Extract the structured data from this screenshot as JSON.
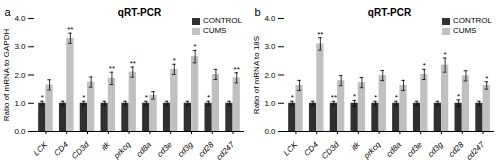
{
  "chart_data": [
    {
      "type": "bar",
      "panel_label": "a",
      "title": "qRT-PCR",
      "ylabel": "Ratio of mRNA to GAPDH",
      "categories": [
        "LCK",
        "CD4",
        "CD3d",
        "itk",
        "prkcq",
        "cd8a",
        "cd3e",
        "cd3g",
        "cd28",
        "cd247"
      ],
      "series": [
        {
          "name": "CONTROL",
          "color": "#303030",
          "values": [
            1.0,
            1.0,
            1.0,
            1.0,
            1.0,
            1.0,
            1.0,
            1.0,
            1.0,
            1.0
          ],
          "errors": [
            0.07,
            0.07,
            0.07,
            0.07,
            0.07,
            0.07,
            0.07,
            0.07,
            0.07,
            0.07
          ],
          "significance": [
            "*",
            null,
            "*",
            null,
            null,
            "*",
            null,
            null,
            "*",
            null
          ]
        },
        {
          "name": "CUMS",
          "color": "#c0c0c0",
          "values": [
            1.65,
            3.3,
            1.75,
            1.88,
            2.1,
            1.28,
            2.2,
            2.65,
            2.02,
            1.9
          ],
          "errors": [
            0.18,
            0.18,
            0.18,
            0.22,
            0.18,
            0.13,
            0.18,
            0.22,
            0.18,
            0.18
          ],
          "significance": [
            null,
            "**",
            null,
            "**",
            "**",
            null,
            "*",
            "*",
            null,
            "**"
          ]
        }
      ],
      "ylim": [
        0,
        4
      ],
      "yticks": [
        0,
        1,
        2,
        3,
        4
      ],
      "grid": false,
      "legend": "upper right"
    },
    {
      "type": "bar",
      "panel_label": "b",
      "title": "qRT-PCR",
      "ylabel": "Ratio of mRNA to 18S",
      "categories": [
        "LCK",
        "CD4",
        "CD3d",
        "itk",
        "prkcq",
        "cd8a",
        "cd3e",
        "cd3g",
        "cd28",
        "cd247"
      ],
      "series": [
        {
          "name": "CONTROL",
          "color": "#303030",
          "values": [
            1.0,
            1.0,
            1.0,
            1.0,
            1.0,
            1.0,
            1.0,
            1.0,
            1.0,
            1.0
          ],
          "errors": [
            0.07,
            0.07,
            0.07,
            0.1,
            0.07,
            0.07,
            0.07,
            0.07,
            0.12,
            0.07
          ],
          "significance": [
            "*",
            null,
            "**",
            "*",
            "*",
            "*",
            null,
            null,
            "*",
            null
          ]
        },
        {
          "name": "CUMS",
          "color": "#c0c0c0",
          "values": [
            1.63,
            3.1,
            1.8,
            1.73,
            1.98,
            1.63,
            2.02,
            2.35,
            1.97,
            1.63
          ],
          "errors": [
            0.18,
            0.22,
            0.18,
            0.18,
            0.18,
            0.18,
            0.18,
            0.25,
            0.18,
            0.13
          ],
          "significance": [
            null,
            "**",
            null,
            null,
            null,
            null,
            "*",
            "*",
            null,
            "*"
          ]
        }
      ],
      "ylim": [
        0,
        4
      ],
      "yticks": [
        0,
        1,
        2,
        3,
        4
      ],
      "grid": false,
      "legend": "upper right"
    }
  ]
}
